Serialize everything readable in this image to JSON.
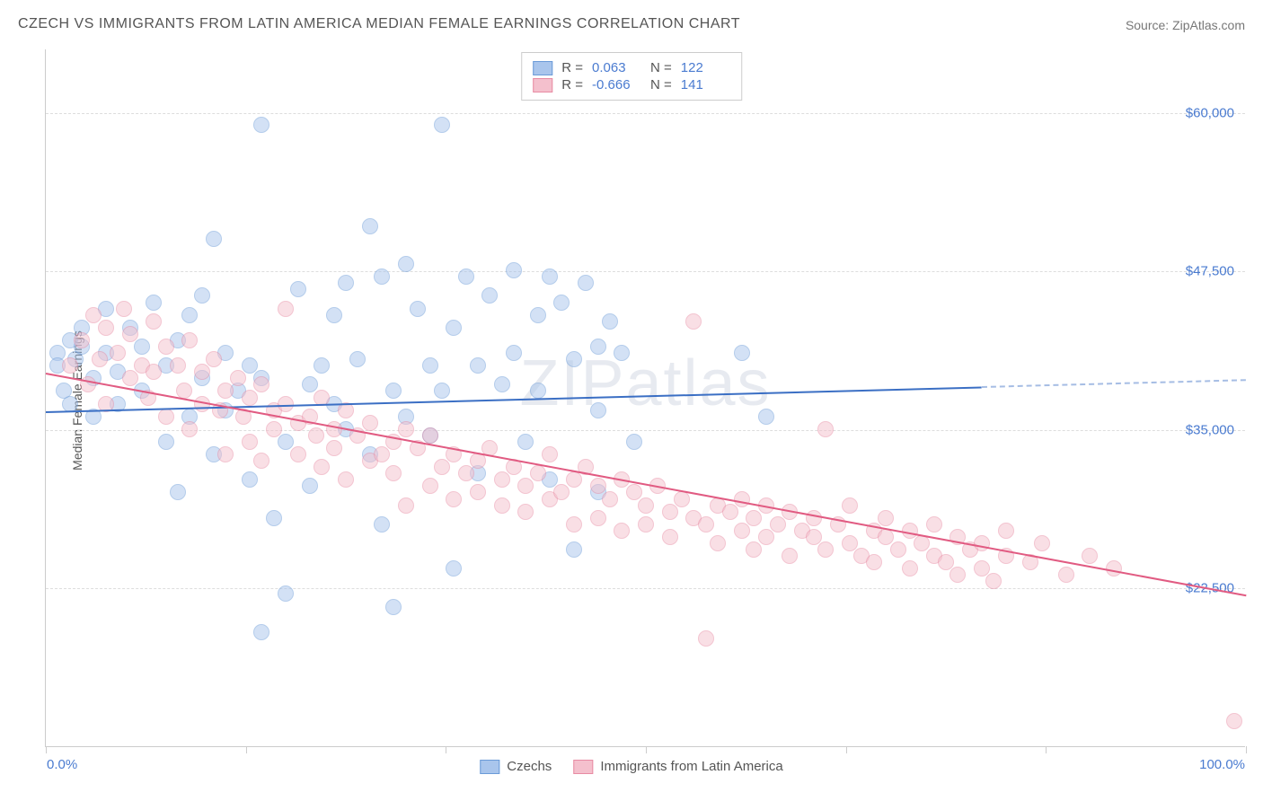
{
  "title": "CZECH VS IMMIGRANTS FROM LATIN AMERICA MEDIAN FEMALE EARNINGS CORRELATION CHART",
  "source": "Source: ZipAtlas.com",
  "y_axis_label": "Median Female Earnings",
  "watermark": "ZIPatlas",
  "chart": {
    "type": "scatter",
    "background_color": "#ffffff",
    "grid_color": "#dddddd",
    "axis_color": "#cccccc",
    "text_color": "#555555",
    "value_color": "#4a7bd0",
    "title_fontsize": 16,
    "label_fontsize": 14,
    "tick_fontsize": 15,
    "xlim": [
      0,
      100
    ],
    "ylim": [
      10000,
      65000
    ],
    "y_ticks": [
      22500,
      35000,
      47500,
      60000
    ],
    "y_tick_labels": [
      "$22,500",
      "$35,000",
      "$47,500",
      "$60,000"
    ],
    "x_tick_labels": {
      "left": "0.0%",
      "right": "100.0%"
    },
    "x_minor_ticks": [
      0,
      16.67,
      33.33,
      50,
      66.67,
      83.33,
      100
    ],
    "point_radius": 9,
    "point_opacity": 0.5,
    "series": [
      {
        "name": "Czechs",
        "fill_color": "#a9c5ec",
        "stroke_color": "#6b9bd8",
        "trend": {
          "y_start": 36500,
          "y_end": 39000,
          "x_solid_end": 78,
          "line_color": "#3b6fc4",
          "line_width": 2
        },
        "stats": {
          "R": "0.063",
          "N": "122"
        },
        "points": [
          [
            1,
            41000
          ],
          [
            1,
            40000
          ],
          [
            1.5,
            38000
          ],
          [
            2,
            42000
          ],
          [
            2,
            37000
          ],
          [
            2.5,
            40500
          ],
          [
            3,
            41500
          ],
          [
            3,
            43000
          ],
          [
            4,
            39000
          ],
          [
            4,
            36000
          ],
          [
            5,
            41000
          ],
          [
            5,
            44500
          ],
          [
            6,
            39500
          ],
          [
            6,
            37000
          ],
          [
            7,
            43000
          ],
          [
            8,
            41500
          ],
          [
            8,
            38000
          ],
          [
            9,
            45000
          ],
          [
            10,
            40000
          ],
          [
            10,
            34000
          ],
          [
            11,
            42000
          ],
          [
            11,
            30000
          ],
          [
            12,
            44000
          ],
          [
            12,
            36000
          ],
          [
            13,
            39000
          ],
          [
            13,
            45500
          ],
          [
            14,
            50000
          ],
          [
            14,
            33000
          ],
          [
            15,
            41000
          ],
          [
            15,
            36500
          ],
          [
            16,
            38000
          ],
          [
            17,
            40000
          ],
          [
            17,
            31000
          ],
          [
            18,
            59000
          ],
          [
            18,
            39000
          ],
          [
            18,
            19000
          ],
          [
            19,
            28000
          ],
          [
            20,
            34000
          ],
          [
            20,
            22000
          ],
          [
            21,
            46000
          ],
          [
            22,
            38500
          ],
          [
            22,
            30500
          ],
          [
            23,
            40000
          ],
          [
            24,
            44000
          ],
          [
            24,
            37000
          ],
          [
            25,
            46500
          ],
          [
            25,
            35000
          ],
          [
            26,
            40500
          ],
          [
            27,
            51000
          ],
          [
            27,
            33000
          ],
          [
            28,
            47000
          ],
          [
            28,
            27500
          ],
          [
            29,
            38000
          ],
          [
            29,
            21000
          ],
          [
            30,
            48000
          ],
          [
            30,
            36000
          ],
          [
            31,
            44500
          ],
          [
            32,
            40000
          ],
          [
            32,
            34500
          ],
          [
            33,
            59000
          ],
          [
            33,
            38000
          ],
          [
            34,
            24000
          ],
          [
            34,
            43000
          ],
          [
            35,
            47000
          ],
          [
            36,
            40000
          ],
          [
            36,
            31500
          ],
          [
            37,
            45500
          ],
          [
            38,
            38500
          ],
          [
            39,
            41000
          ],
          [
            39,
            47500
          ],
          [
            40,
            34000
          ],
          [
            41,
            44000
          ],
          [
            41,
            38000
          ],
          [
            42,
            47000
          ],
          [
            42,
            31000
          ],
          [
            43,
            45000
          ],
          [
            44,
            40500
          ],
          [
            44,
            25500
          ],
          [
            45,
            46500
          ],
          [
            46,
            41500
          ],
          [
            46,
            36500
          ],
          [
            46,
            30000
          ],
          [
            47,
            43500
          ],
          [
            48,
            41000
          ],
          [
            49,
            34000
          ],
          [
            58,
            41000
          ],
          [
            60,
            36000
          ]
        ]
      },
      {
        "name": "Immigrants from Latin America",
        "fill_color": "#f4c0cd",
        "stroke_color": "#e88ba3",
        "trend": {
          "y_start": 39500,
          "y_end": 22000,
          "x_solid_end": 100,
          "line_color": "#e15b82",
          "line_width": 2
        },
        "stats": {
          "R": "-0.666",
          "N": "141"
        },
        "points": [
          [
            2,
            40000
          ],
          [
            3,
            42000
          ],
          [
            3.5,
            38500
          ],
          [
            4,
            44000
          ],
          [
            4.5,
            40500
          ],
          [
            5,
            43000
          ],
          [
            5,
            37000
          ],
          [
            6,
            41000
          ],
          [
            6.5,
            44500
          ],
          [
            7,
            39000
          ],
          [
            7,
            42500
          ],
          [
            8,
            40000
          ],
          [
            8.5,
            37500
          ],
          [
            9,
            43500
          ],
          [
            9,
            39500
          ],
          [
            10,
            41500
          ],
          [
            10,
            36000
          ],
          [
            11,
            40000
          ],
          [
            11.5,
            38000
          ],
          [
            12,
            42000
          ],
          [
            12,
            35000
          ],
          [
            13,
            39500
          ],
          [
            13,
            37000
          ],
          [
            14,
            40500
          ],
          [
            14.5,
            36500
          ],
          [
            15,
            38000
          ],
          [
            15,
            33000
          ],
          [
            16,
            39000
          ],
          [
            16.5,
            36000
          ],
          [
            17,
            37500
          ],
          [
            17,
            34000
          ],
          [
            18,
            38500
          ],
          [
            18,
            32500
          ],
          [
            19,
            36500
          ],
          [
            19,
            35000
          ],
          [
            20,
            37000
          ],
          [
            20,
            44500
          ],
          [
            21,
            35500
          ],
          [
            21,
            33000
          ],
          [
            22,
            36000
          ],
          [
            22.5,
            34500
          ],
          [
            23,
            37500
          ],
          [
            23,
            32000
          ],
          [
            24,
            35000
          ],
          [
            24,
            33500
          ],
          [
            25,
            36500
          ],
          [
            25,
            31000
          ],
          [
            26,
            34500
          ],
          [
            27,
            35500
          ],
          [
            27,
            32500
          ],
          [
            28,
            33000
          ],
          [
            29,
            34000
          ],
          [
            29,
            31500
          ],
          [
            30,
            35000
          ],
          [
            30,
            29000
          ],
          [
            31,
            33500
          ],
          [
            32,
            34500
          ],
          [
            32,
            30500
          ],
          [
            33,
            32000
          ],
          [
            34,
            33000
          ],
          [
            34,
            29500
          ],
          [
            35,
            31500
          ],
          [
            36,
            32500
          ],
          [
            36,
            30000
          ],
          [
            37,
            33500
          ],
          [
            38,
            31000
          ],
          [
            38,
            29000
          ],
          [
            39,
            32000
          ],
          [
            40,
            30500
          ],
          [
            40,
            28500
          ],
          [
            41,
            31500
          ],
          [
            42,
            33000
          ],
          [
            42,
            29500
          ],
          [
            43,
            30000
          ],
          [
            44,
            31000
          ],
          [
            44,
            27500
          ],
          [
            45,
            32000
          ],
          [
            46,
            30500
          ],
          [
            46,
            28000
          ],
          [
            47,
            29500
          ],
          [
            48,
            31000
          ],
          [
            48,
            27000
          ],
          [
            49,
            30000
          ],
          [
            50,
            29000
          ],
          [
            50,
            27500
          ],
          [
            51,
            30500
          ],
          [
            52,
            28500
          ],
          [
            52,
            26500
          ],
          [
            53,
            29500
          ],
          [
            54,
            28000
          ],
          [
            54,
            43500
          ],
          [
            55,
            27500
          ],
          [
            55,
            18500
          ],
          [
            56,
            29000
          ],
          [
            56,
            26000
          ],
          [
            57,
            28500
          ],
          [
            58,
            27000
          ],
          [
            58,
            29500
          ],
          [
            59,
            28000
          ],
          [
            59,
            25500
          ],
          [
            60,
            29000
          ],
          [
            60,
            26500
          ],
          [
            61,
            27500
          ],
          [
            62,
            28500
          ],
          [
            62,
            25000
          ],
          [
            63,
            27000
          ],
          [
            64,
            26500
          ],
          [
            64,
            28000
          ],
          [
            65,
            25500
          ],
          [
            65,
            35000
          ],
          [
            66,
            27500
          ],
          [
            67,
            26000
          ],
          [
            67,
            29000
          ],
          [
            68,
            25000
          ],
          [
            69,
            27000
          ],
          [
            69,
            24500
          ],
          [
            70,
            26500
          ],
          [
            70,
            28000
          ],
          [
            71,
            25500
          ],
          [
            72,
            27000
          ],
          [
            72,
            24000
          ],
          [
            73,
            26000
          ],
          [
            74,
            25000
          ],
          [
            74,
            27500
          ],
          [
            75,
            24500
          ],
          [
            76,
            26500
          ],
          [
            76,
            23500
          ],
          [
            77,
            25500
          ],
          [
            78,
            24000
          ],
          [
            78,
            26000
          ],
          [
            79,
            23000
          ],
          [
            80,
            25000
          ],
          [
            80,
            27000
          ],
          [
            82,
            24500
          ],
          [
            83,
            26000
          ],
          [
            85,
            23500
          ],
          [
            87,
            25000
          ],
          [
            89,
            24000
          ],
          [
            99,
            12000
          ]
        ]
      }
    ]
  },
  "bottom_legend": {
    "series1_label": "Czechs",
    "series2_label": "Immigrants from Latin America"
  }
}
